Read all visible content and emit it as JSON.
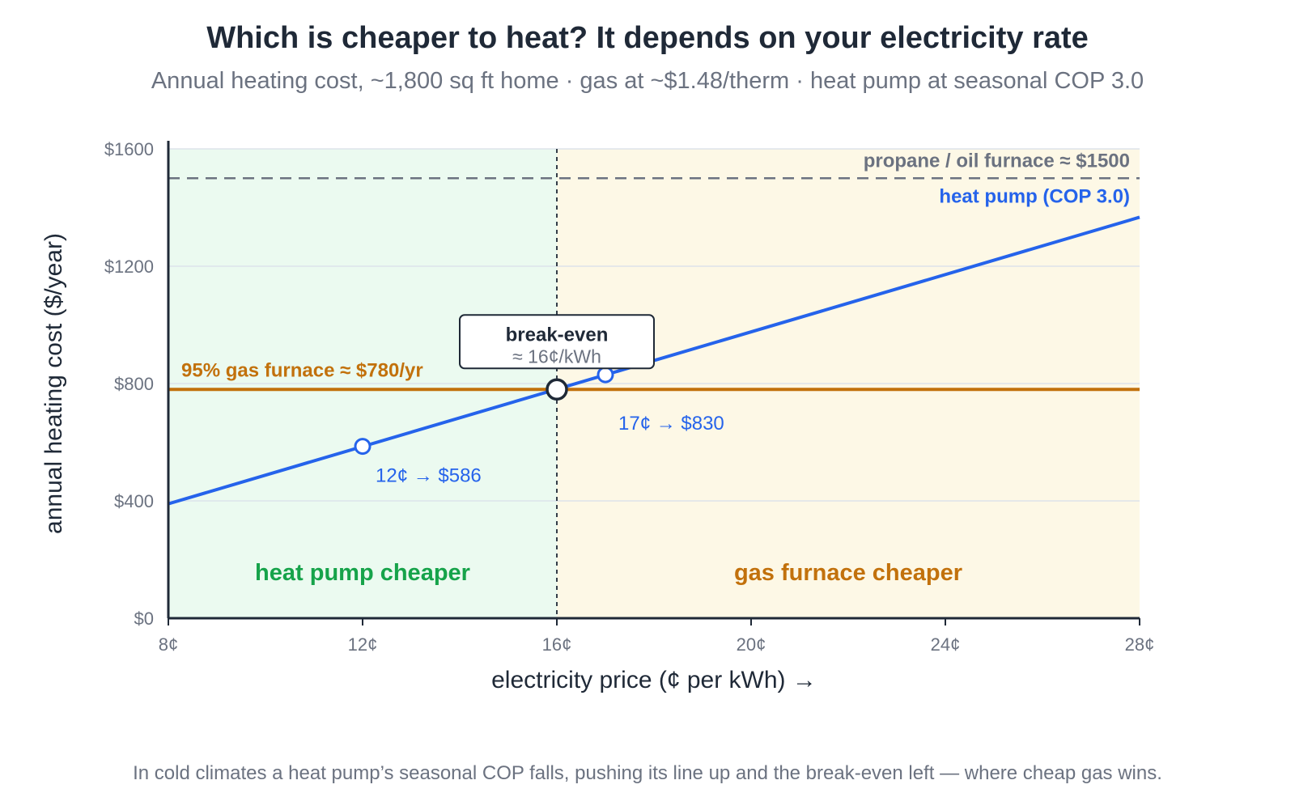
{
  "chart_data": {
    "type": "line",
    "title": "Which is cheaper to heat? It depends on your electricity rate",
    "subtitle": "Annual heating cost, ~1,800 sq ft home · gas at ~$1.48/therm · heat pump at seasonal COP 3.0",
    "xlabel": "electricity price (¢ per kWh) →",
    "ylabel": "annual heating cost ($/year)",
    "xlim": [
      8,
      28
    ],
    "ylim": [
      0,
      1600
    ],
    "x_ticks": [
      8,
      12,
      16,
      20,
      24,
      28
    ],
    "x_tick_labels": [
      "8¢",
      "12¢",
      "16¢",
      "20¢",
      "24¢",
      "28¢"
    ],
    "y_ticks": [
      0,
      400,
      800,
      1200,
      1600
    ],
    "y_tick_labels": [
      "$0",
      "$400",
      "$800",
      "$1200",
      "$1600"
    ],
    "grid": "horizontal",
    "series": [
      {
        "name": "heat pump (COP 3.0)",
        "color": "#2563eb",
        "x": [
          8,
          28
        ],
        "y": [
          390,
          1367
        ]
      },
      {
        "name": "95% gas furnace ≈ $780/yr",
        "color": "#c2710c",
        "x": [
          8,
          28
        ],
        "y": [
          780,
          780
        ]
      },
      {
        "name": "propane / oil furnace ≈ $1500",
        "color": "#6b7280",
        "style": "dashed",
        "x": [
          8,
          28
        ],
        "y": [
          1500,
          1500
        ]
      }
    ],
    "points": [
      {
        "x": 12,
        "y": 586,
        "label": "12¢ → $586"
      },
      {
        "x": 17,
        "y": 830,
        "label": "17¢ → $830"
      }
    ],
    "break_even": {
      "x": 16,
      "y": 780,
      "title": "break-even",
      "label": "≈ 16¢/kWh"
    },
    "regions": [
      {
        "from": 8,
        "to": 16,
        "label": "heat pump cheaper",
        "fill": "#ebfaf0",
        "text_color": "#16a34a"
      },
      {
        "from": 16,
        "to": 28,
        "label": "gas furnace cheaper",
        "fill": "#fdf8e6",
        "text_color": "#c2710c"
      }
    ],
    "footnote": "In cold climates a heat pump’s seasonal COP falls, pushing its line up and the break-even left — where cheap gas wins."
  }
}
